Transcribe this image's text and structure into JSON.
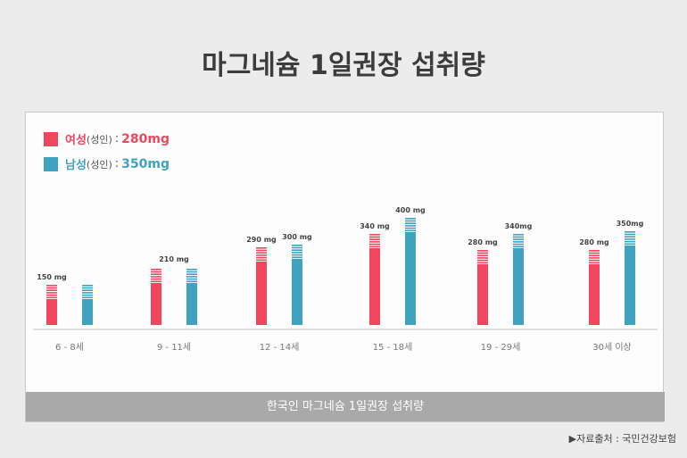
{
  "title": "마그네슘 1일권장 섭취량",
  "legend": {
    "female": {
      "label": "여성",
      "sub": "(성인)",
      "sep": ":",
      "value": "280mg",
      "color": "#f0475f"
    },
    "male": {
      "label": "남성",
      "sub": "(성인)",
      "sep": ":",
      "value": "350mg",
      "color": "#3fa3bf"
    }
  },
  "caption": "한국인 마그네슘 1일권장 섭취량",
  "source": "▶자료출처 : 국민건강보험",
  "chart_data": {
    "type": "bar",
    "categories": [
      "6 - 8세",
      "9 - 11세",
      "12 - 14세",
      "15 - 18세",
      "19 - 29세",
      "30세 이상"
    ],
    "series": [
      {
        "name": "여성",
        "color": "#f0475f",
        "values": [
          150,
          210,
          290,
          340,
          280,
          280
        ],
        "labels": [
          "150 mg",
          "",
          "290 mg",
          "340 mg",
          "280 mg",
          "280 mg"
        ]
      },
      {
        "name": "남성",
        "color": "#3fa3bf",
        "values": [
          150,
          210,
          300,
          400,
          340,
          350
        ],
        "labels": [
          "",
          "",
          "300 mg",
          "400 mg",
          "340mg",
          "350mg"
        ]
      }
    ],
    "group_labels": [
      "",
      "210 mg",
      "",
      "",
      "",
      ""
    ],
    "ylim": [
      0,
      450
    ]
  }
}
